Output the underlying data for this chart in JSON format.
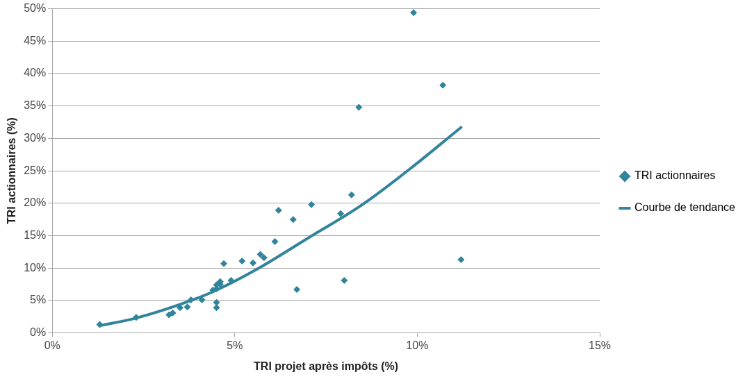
{
  "chart_data": {
    "type": "scatter",
    "xlabel": "TRI projet après impôts (%)",
    "ylabel": "TRI actionnaires (%)",
    "xlim": [
      0,
      15
    ],
    "xticks": [
      {
        "value": 0,
        "label": "0%"
      },
      {
        "value": 5,
        "label": "5%"
      },
      {
        "value": 10,
        "label": "10%"
      },
      {
        "value": 15,
        "label": "15%"
      }
    ],
    "ylim": [
      0,
      50
    ],
    "yticks": [
      {
        "value": 0,
        "label": "0%"
      },
      {
        "value": 5,
        "label": "5%"
      },
      {
        "value": 10,
        "label": "10%"
      },
      {
        "value": 15,
        "label": "15%"
      },
      {
        "value": 20,
        "label": "20%"
      },
      {
        "value": 25,
        "label": "25%"
      },
      {
        "value": 30,
        "label": "30%"
      },
      {
        "value": 35,
        "label": "35%"
      },
      {
        "value": 40,
        "label": "40%"
      },
      {
        "value": 45,
        "label": "45%"
      },
      {
        "value": 50,
        "label": "50%"
      }
    ],
    "grid": "y",
    "legend": "right",
    "marker": "diamond",
    "series": [
      {
        "name": "TRI actionnaires",
        "color": "#31849b",
        "x": [
          1.3,
          2.3,
          3.2,
          3.3,
          3.5,
          3.7,
          3.8,
          4.1,
          4.5,
          4.5,
          4.5,
          4.5,
          4.6,
          4.6,
          4.4,
          4.7,
          4.9,
          5.2,
          5.5,
          5.7,
          5.8,
          6.1,
          6.2,
          6.6,
          6.7,
          7.1,
          7.9,
          8.0,
          8.2,
          8.4,
          9.9,
          10.7,
          11.2
        ],
        "values": [
          1.3,
          2.4,
          2.8,
          3.1,
          3.9,
          4.0,
          5.1,
          5.1,
          3.9,
          4.7,
          6.8,
          7.4,
          7.9,
          7.5,
          6.6,
          10.7,
          8.1,
          11.1,
          10.8,
          12.1,
          11.6,
          14.1,
          18.9,
          17.5,
          6.7,
          19.8,
          18.4,
          8.1,
          21.3,
          34.8,
          49.4,
          38.2,
          11.3
        ]
      },
      {
        "name": "Courbe de tendance",
        "type": "line",
        "marker": "none",
        "color": "#31849b",
        "x": [
          1.3,
          2.3,
          3.8,
          4.5,
          5.6,
          7.0,
          8.5,
          9.8,
          11.2
        ],
        "values": [
          1.1,
          2.3,
          5.0,
          6.6,
          9.8,
          14.6,
          19.8,
          25.3,
          31.7
        ]
      }
    ]
  }
}
